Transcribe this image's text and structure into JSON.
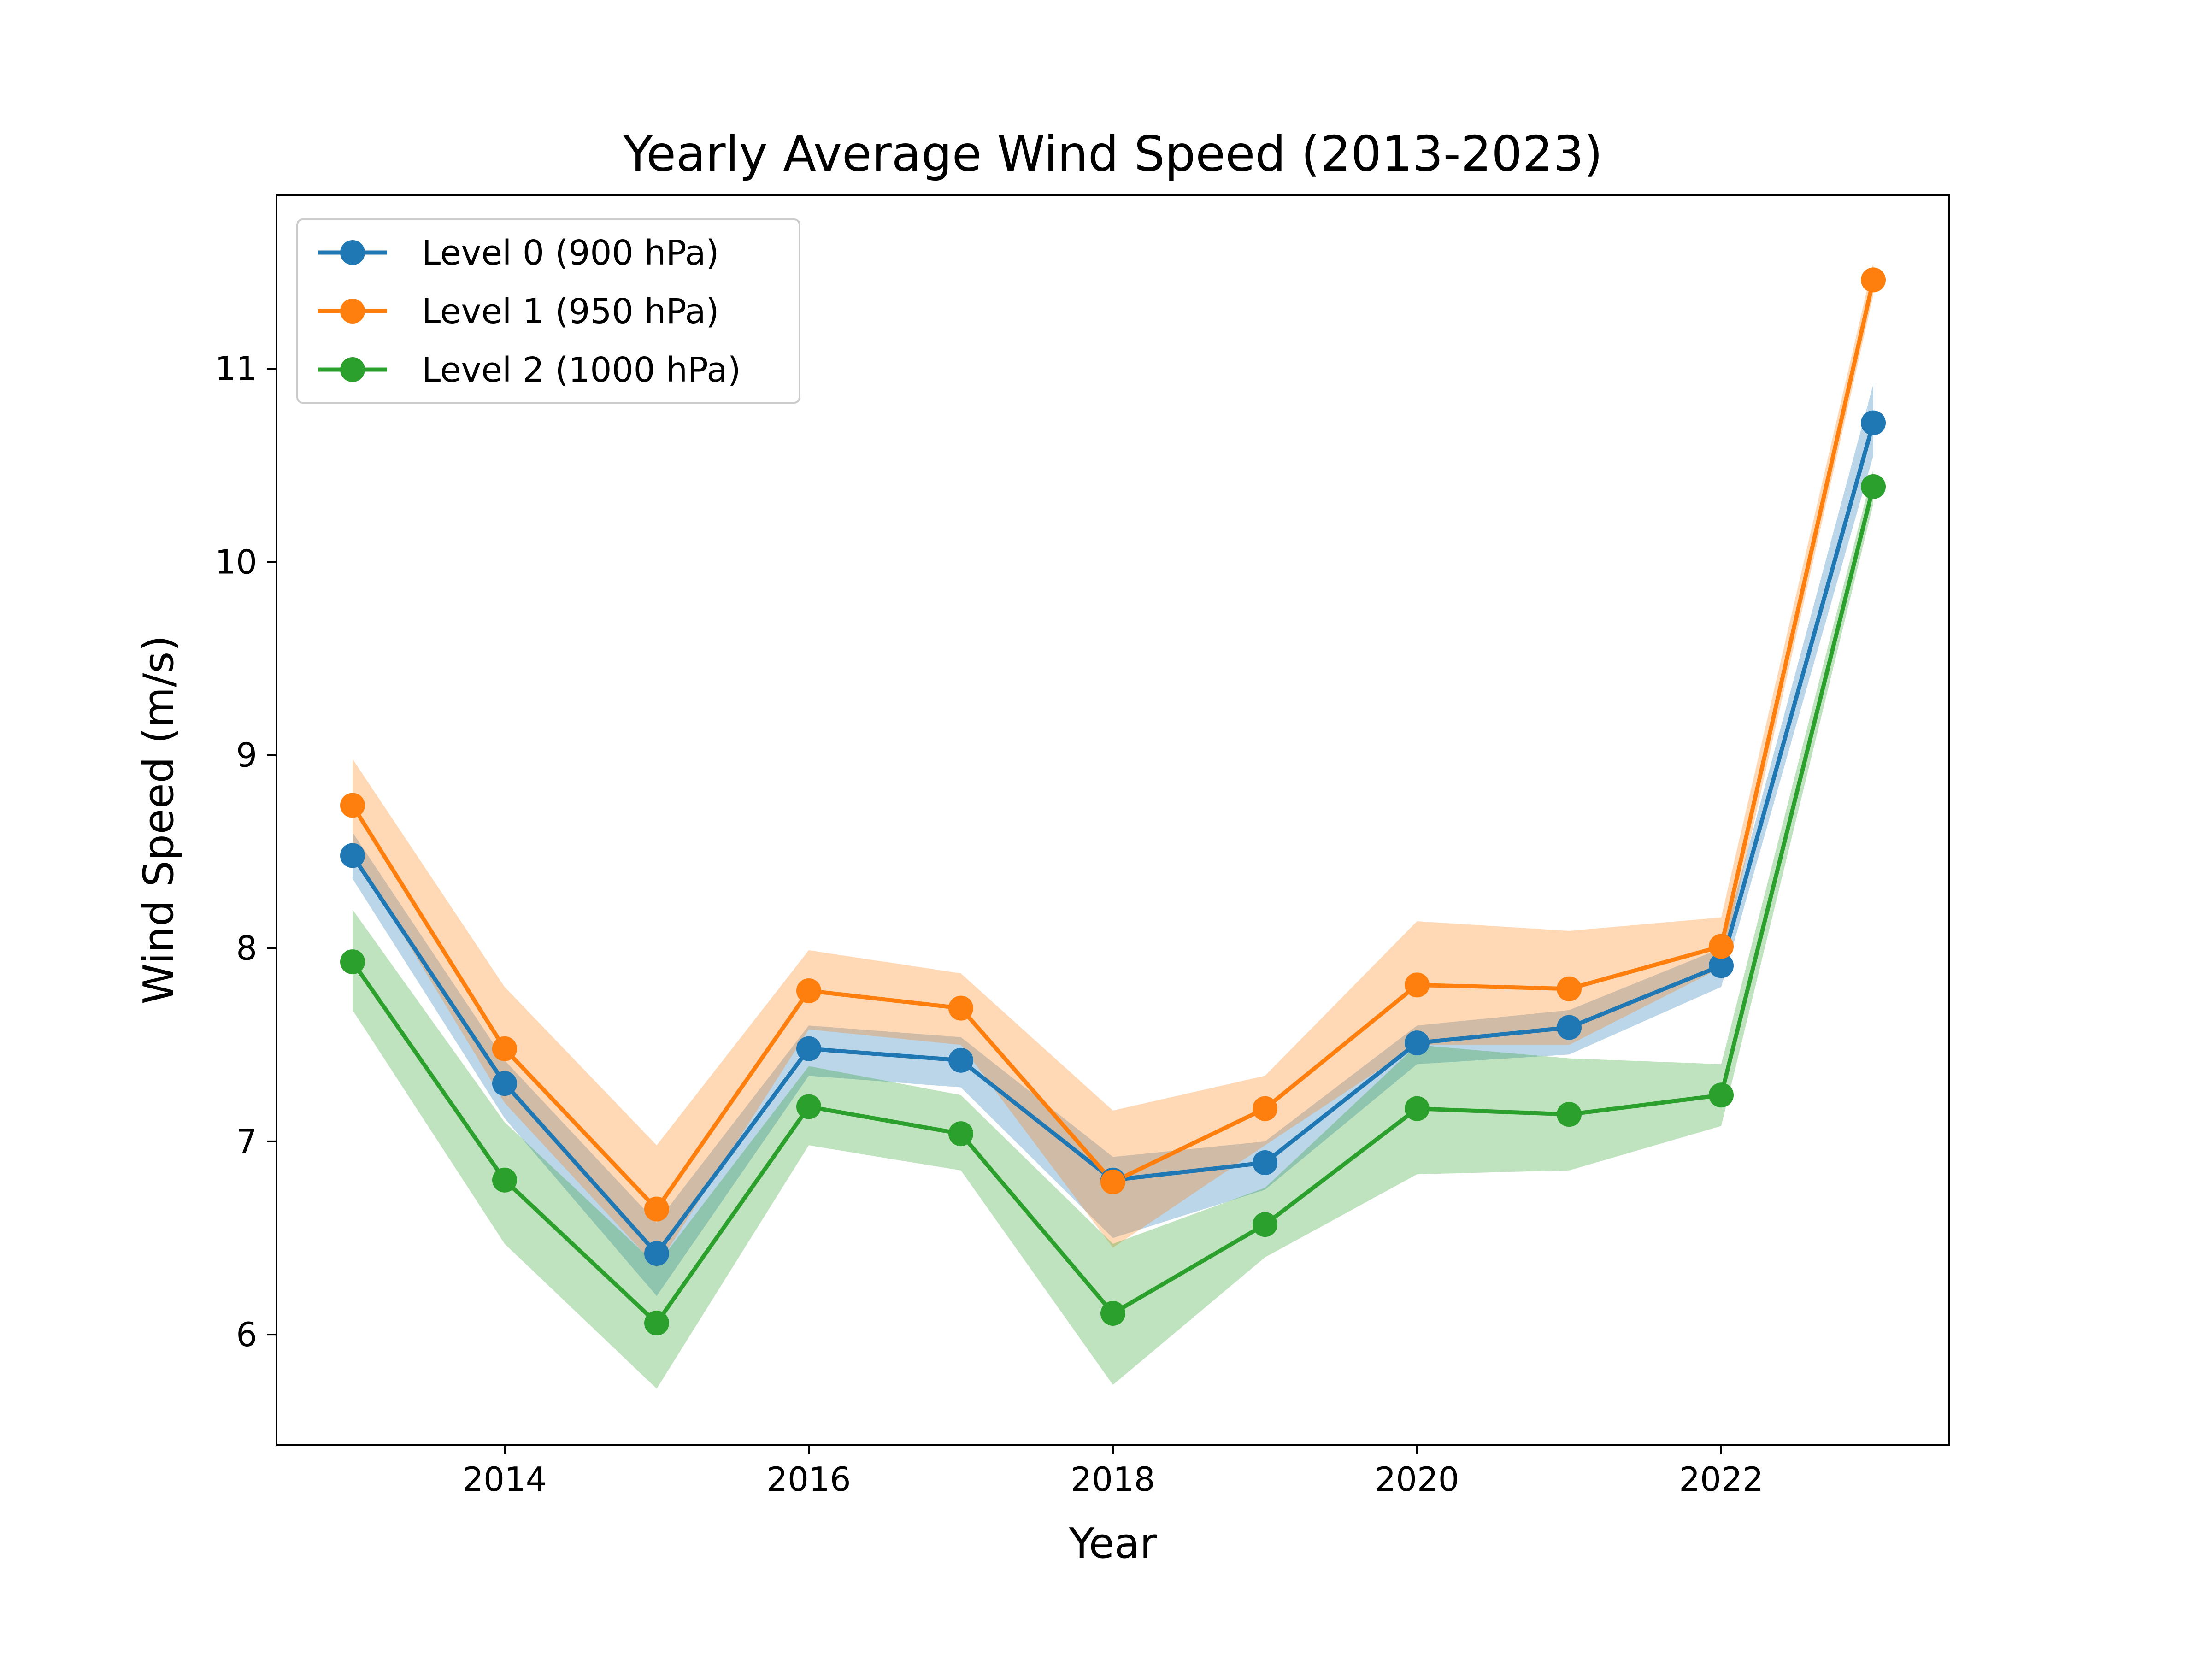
{
  "chart_data": {
    "type": "line",
    "title": "Yearly Average Wind Speed (2013-2023)",
    "xlabel": "Year",
    "ylabel": "Wind Speed (m/s)",
    "x": [
      2013,
      2014,
      2015,
      2016,
      2017,
      2018,
      2019,
      2020,
      2021,
      2022,
      2023
    ],
    "xlim": [
      2012.5,
      2023.5
    ],
    "ylim": [
      5.43,
      11.9
    ],
    "xticks": [
      "2014",
      "2016",
      "2018",
      "2020",
      "2022"
    ],
    "yticks": [
      "6",
      "7",
      "8",
      "9",
      "10",
      "11"
    ],
    "grid": false,
    "legend_position": "upper-left",
    "series": [
      {
        "name": "Level 0 (900 hPa)",
        "color": "#1f77b4",
        "values": [
          8.48,
          7.3,
          6.42,
          7.48,
          7.42,
          6.8,
          6.89,
          7.51,
          7.59,
          7.91,
          10.72
        ],
        "band_low": [
          8.36,
          7.12,
          6.2,
          7.34,
          7.28,
          6.5,
          6.75,
          7.4,
          7.45,
          7.8,
          10.55
        ],
        "band_high": [
          8.6,
          7.42,
          6.58,
          7.6,
          7.54,
          6.92,
          7.0,
          7.6,
          7.68,
          8.0,
          10.92
        ]
      },
      {
        "name": "Level 1 (950 hPa)",
        "color": "#ff7f0e",
        "values": [
          8.74,
          7.48,
          6.65,
          7.78,
          7.69,
          6.79,
          7.17,
          7.81,
          7.79,
          8.01,
          11.46
        ],
        "band_low": [
          8.5,
          7.2,
          6.35,
          7.58,
          7.5,
          6.45,
          6.98,
          7.5,
          7.5,
          7.9,
          11.38
        ],
        "band_high": [
          8.98,
          7.8,
          6.98,
          7.99,
          7.87,
          7.16,
          7.34,
          8.14,
          8.09,
          8.16,
          11.55
        ]
      },
      {
        "name": "Level 2 (1000 hPa)",
        "color": "#2ca02c",
        "values": [
          7.93,
          6.8,
          6.06,
          7.18,
          7.04,
          6.11,
          6.57,
          7.17,
          7.14,
          7.24,
          10.39
        ],
        "band_low": [
          7.68,
          6.47,
          5.72,
          6.98,
          6.85,
          5.74,
          6.4,
          6.83,
          6.85,
          7.08,
          10.3
        ],
        "band_high": [
          8.2,
          7.1,
          6.36,
          7.39,
          7.24,
          6.47,
          6.76,
          7.5,
          7.43,
          7.4,
          10.48
        ]
      }
    ]
  }
}
